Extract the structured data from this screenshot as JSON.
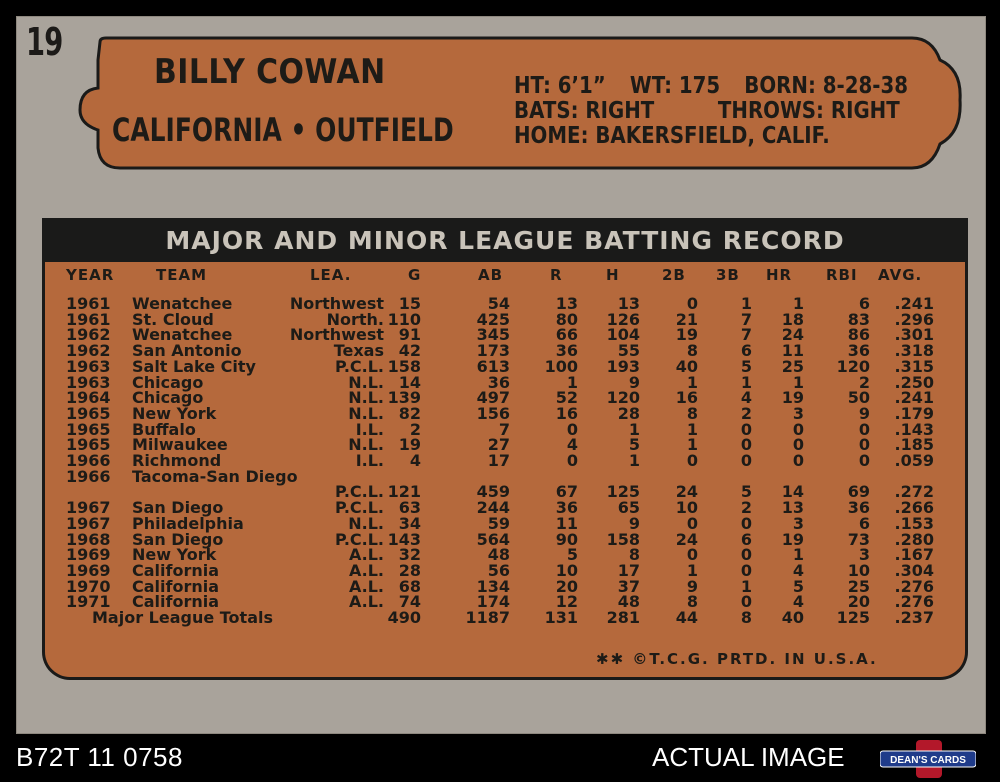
{
  "card": {
    "number": "19",
    "player_name": "BILLY COWAN",
    "team_position": "CALIFORNIA • OUTFIELD",
    "bio": {
      "height": "HT: 6’1”",
      "weight": "WT: 175",
      "born": "BORN: 8-28-38",
      "bats": "BATS: RIGHT",
      "throws": "THROWS: RIGHT",
      "home": "HOME: BAKERSFIELD, CALIF."
    },
    "stats_title": "MAJOR AND MINOR LEAGUE BATTING RECORD",
    "columns": [
      "YEAR",
      "TEAM",
      "LEA.",
      "G",
      "AB",
      "R",
      "H",
      "2B",
      "3B",
      "HR",
      "RBI",
      "AVG."
    ],
    "rows": [
      [
        "1961",
        "Wenatchee",
        "Northwest",
        "15",
        "54",
        "13",
        "13",
        "0",
        "1",
        "1",
        "6",
        ".241"
      ],
      [
        "1961",
        "St. Cloud",
        "North.",
        "110",
        "425",
        "80",
        "126",
        "21",
        "7",
        "18",
        "83",
        ".296"
      ],
      [
        "1962",
        "Wenatchee",
        "Northwest",
        "91",
        "345",
        "66",
        "104",
        "19",
        "7",
        "24",
        "86",
        ".301"
      ],
      [
        "1962",
        "San Antonio",
        "Texas",
        "42",
        "173",
        "36",
        "55",
        "8",
        "6",
        "11",
        "36",
        ".318"
      ],
      [
        "1963",
        "Salt Lake City",
        "P.C.L.",
        "158",
        "613",
        "100",
        "193",
        "40",
        "5",
        "25",
        "120",
        ".315"
      ],
      [
        "1963",
        "Chicago",
        "N.L.",
        "14",
        "36",
        "1",
        "9",
        "1",
        "1",
        "1",
        "2",
        ".250"
      ],
      [
        "1964",
        "Chicago",
        "N.L.",
        "139",
        "497",
        "52",
        "120",
        "16",
        "4",
        "19",
        "50",
        ".241"
      ],
      [
        "1965",
        "New York",
        "N.L.",
        "82",
        "156",
        "16",
        "28",
        "8",
        "2",
        "3",
        "9",
        ".179"
      ],
      [
        "1965",
        "Buffalo",
        "I.L.",
        "2",
        "7",
        "0",
        "1",
        "1",
        "0",
        "0",
        "0",
        ".143"
      ],
      [
        "1965",
        "Milwaukee",
        "N.L.",
        "19",
        "27",
        "4",
        "5",
        "1",
        "0",
        "0",
        "0",
        ".185"
      ],
      [
        "1966",
        "Richmond",
        "I.L.",
        "4",
        "17",
        "0",
        "1",
        "0",
        "0",
        "0",
        "0",
        ".059"
      ],
      [
        "1966",
        "Tacoma-San Diego",
        "",
        "",
        "",
        "",
        "",
        "",
        "",
        "",
        "",
        ""
      ],
      [
        "",
        "",
        "P.C.L.",
        "121",
        "459",
        "67",
        "125",
        "24",
        "5",
        "14",
        "69",
        ".272"
      ],
      [
        "1967",
        "San Diego",
        "P.C.L.",
        "63",
        "244",
        "36",
        "65",
        "10",
        "2",
        "13",
        "36",
        ".266"
      ],
      [
        "1967",
        "Philadelphia",
        "N.L.",
        "34",
        "59",
        "11",
        "9",
        "0",
        "0",
        "3",
        "6",
        ".153"
      ],
      [
        "1968",
        "San Diego",
        "P.C.L.",
        "143",
        "564",
        "90",
        "158",
        "24",
        "6",
        "19",
        "73",
        ".280"
      ],
      [
        "1969",
        "New York",
        "A.L.",
        "32",
        "48",
        "5",
        "8",
        "0",
        "0",
        "1",
        "3",
        ".167"
      ],
      [
        "1969",
        "California",
        "A.L.",
        "28",
        "56",
        "10",
        "17",
        "1",
        "0",
        "4",
        "10",
        ".304"
      ],
      [
        "1970",
        "California",
        "A.L.",
        "68",
        "134",
        "20",
        "37",
        "9",
        "1",
        "5",
        "25",
        ".276"
      ],
      [
        "1971",
        "California",
        "A.L.",
        "74",
        "174",
        "12",
        "48",
        "8",
        "0",
        "4",
        "20",
        ".276"
      ],
      [
        "",
        "Major League Totals",
        "",
        "490",
        "1187",
        "131",
        "281",
        "44",
        "8",
        "40",
        "125",
        ".237"
      ]
    ],
    "footer_mark": "✱✱  ©T.C.G. PRTD. IN U.S.A."
  },
  "listing": {
    "sku": "B72T 11 0758",
    "caption": "ACTUAL IMAGE",
    "logo_text": "DEAN'S CARDS"
  },
  "colors": {
    "card_gray": "#a9a39b",
    "plate_orange": "#b5693c",
    "ink": "#1d1b17",
    "banner": "#1a1a19"
  }
}
